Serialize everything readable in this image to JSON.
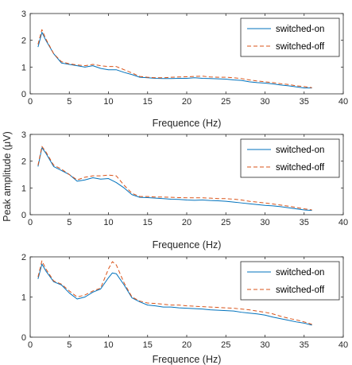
{
  "shared_ylabel": "Peak amplitude (μV)",
  "chart_data": [
    {
      "type": "line",
      "xlabel": "Frequence (Hz)",
      "ylabel": "",
      "xlim": [
        0,
        40
      ],
      "ylim": [
        0,
        3
      ],
      "xticks": [
        0,
        5,
        10,
        15,
        20,
        25,
        30,
        35,
        40
      ],
      "yticks": [
        0,
        1,
        2,
        3
      ],
      "legend_position": "top-right",
      "x": [
        1,
        1.5,
        2,
        3,
        4,
        5,
        6,
        7,
        8,
        9,
        10,
        11,
        12,
        13,
        14,
        15,
        16,
        17,
        18,
        19,
        20,
        21,
        22,
        23,
        24,
        25,
        26,
        27,
        28,
        29,
        30,
        31,
        32,
        33,
        34,
        35,
        36
      ],
      "series": [
        {
          "name": "switched-on",
          "color": "#0072BD",
          "style": "solid",
          "values": [
            1.75,
            2.3,
            2.0,
            1.5,
            1.15,
            1.1,
            1.05,
            1.0,
            1.05,
            0.95,
            0.9,
            0.9,
            0.8,
            0.72,
            0.62,
            0.6,
            0.58,
            0.57,
            0.57,
            0.58,
            0.58,
            0.6,
            0.58,
            0.57,
            0.56,
            0.55,
            0.52,
            0.5,
            0.45,
            0.42,
            0.4,
            0.37,
            0.33,
            0.3,
            0.26,
            0.22,
            0.22
          ]
        },
        {
          "name": "switched-off",
          "color": "#D95319",
          "style": "dashed",
          "values": [
            1.85,
            2.4,
            2.05,
            1.5,
            1.2,
            1.12,
            1.08,
            1.05,
            1.1,
            1.05,
            1.02,
            1.02,
            0.9,
            0.78,
            0.65,
            0.62,
            0.6,
            0.6,
            0.62,
            0.63,
            0.64,
            0.65,
            0.66,
            0.63,
            0.62,
            0.62,
            0.6,
            0.57,
            0.52,
            0.48,
            0.45,
            0.42,
            0.38,
            0.35,
            0.3,
            0.27,
            0.23
          ]
        }
      ]
    },
    {
      "type": "line",
      "xlabel": "Frequence (Hz)",
      "ylabel": "Peak amplitude (μV)",
      "xlim": [
        0,
        40
      ],
      "ylim": [
        0,
        3
      ],
      "xticks": [
        0,
        5,
        10,
        15,
        20,
        25,
        30,
        35,
        40
      ],
      "yticks": [
        0,
        1,
        2,
        3
      ],
      "legend_position": "top-right",
      "x": [
        1,
        1.5,
        2,
        3,
        4,
        5,
        6,
        7,
        8,
        9,
        10,
        11,
        12,
        13,
        14,
        15,
        16,
        17,
        18,
        19,
        20,
        21,
        22,
        23,
        24,
        25,
        26,
        27,
        28,
        29,
        30,
        31,
        32,
        33,
        34,
        35,
        36
      ],
      "series": [
        {
          "name": "switched-on",
          "color": "#0072BD",
          "style": "solid",
          "values": [
            1.8,
            2.5,
            2.3,
            1.8,
            1.65,
            1.5,
            1.25,
            1.3,
            1.38,
            1.33,
            1.35,
            1.2,
            1.0,
            0.75,
            0.65,
            0.64,
            0.62,
            0.6,
            0.58,
            0.57,
            0.55,
            0.54,
            0.55,
            0.53,
            0.52,
            0.5,
            0.47,
            0.44,
            0.41,
            0.38,
            0.35,
            0.33,
            0.3,
            0.26,
            0.22,
            0.18,
            0.16
          ]
        },
        {
          "name": "switched-off",
          "color": "#D95319",
          "style": "dashed",
          "values": [
            1.85,
            2.55,
            2.35,
            1.85,
            1.7,
            1.5,
            1.3,
            1.4,
            1.45,
            1.45,
            1.48,
            1.45,
            1.1,
            0.8,
            0.68,
            0.68,
            0.66,
            0.66,
            0.65,
            0.64,
            0.63,
            0.63,
            0.63,
            0.62,
            0.6,
            0.6,
            0.58,
            0.55,
            0.5,
            0.47,
            0.44,
            0.4,
            0.36,
            0.32,
            0.27,
            0.22,
            0.18
          ]
        }
      ]
    },
    {
      "type": "line",
      "xlabel": "Frequence (Hz)",
      "ylabel": "",
      "xlim": [
        0,
        40
      ],
      "ylim": [
        0,
        2
      ],
      "xticks": [
        0,
        5,
        10,
        15,
        20,
        25,
        30,
        35,
        40
      ],
      "yticks": [
        0,
        1,
        2
      ],
      "legend_position": "top-right",
      "x": [
        1,
        1.5,
        2,
        3,
        4,
        5,
        6,
        7,
        8,
        9,
        10,
        10.5,
        11,
        12,
        13,
        14,
        15,
        16,
        17,
        18,
        19,
        20,
        21,
        22,
        23,
        24,
        25,
        26,
        27,
        28,
        29,
        30,
        31,
        32,
        33,
        34,
        35,
        36
      ],
      "series": [
        {
          "name": "switched-on",
          "color": "#0072BD",
          "style": "solid",
          "values": [
            1.45,
            1.82,
            1.65,
            1.38,
            1.3,
            1.1,
            0.95,
            1.0,
            1.12,
            1.2,
            1.48,
            1.6,
            1.58,
            1.3,
            0.98,
            0.88,
            0.8,
            0.78,
            0.75,
            0.75,
            0.73,
            0.72,
            0.71,
            0.7,
            0.68,
            0.67,
            0.66,
            0.65,
            0.62,
            0.6,
            0.58,
            0.55,
            0.5,
            0.46,
            0.42,
            0.38,
            0.35,
            0.3
          ]
        },
        {
          "name": "switched-off",
          "color": "#D95319",
          "style": "dashed",
          "values": [
            1.5,
            1.9,
            1.7,
            1.4,
            1.32,
            1.15,
            1.0,
            1.05,
            1.15,
            1.22,
            1.7,
            1.88,
            1.8,
            1.35,
            1.0,
            0.9,
            0.85,
            0.84,
            0.82,
            0.8,
            0.8,
            0.78,
            0.77,
            0.76,
            0.75,
            0.74,
            0.73,
            0.72,
            0.7,
            0.68,
            0.65,
            0.62,
            0.58,
            0.52,
            0.47,
            0.43,
            0.38,
            0.32
          ]
        }
      ]
    }
  ]
}
